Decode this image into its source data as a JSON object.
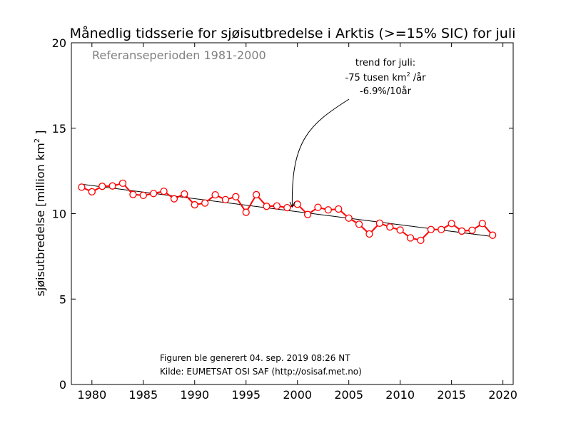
{
  "chart_data": {
    "type": "line",
    "title": "Månedlig tidsserie for sjøisutbredelse i Arktis (>=15% SIC) for juli",
    "reference_period": "Referanseperioden 1981-2000",
    "ylabel_main": "sjøisutbredelse [million km",
    "ylabel_sup": "2",
    "ylabel_end": " ]",
    "xlim": [
      1978,
      2021
    ],
    "ylim": [
      0,
      20
    ],
    "xticks": [
      1980,
      1985,
      1990,
      1995,
      2000,
      2005,
      2010,
      2015,
      2020
    ],
    "yticks": [
      0,
      5,
      10,
      15,
      20
    ],
    "series": [
      {
        "color": "#ff0000",
        "x": [
          1979,
          1980,
          1981,
          1982,
          1983,
          1984,
          1985,
          1986,
          1987,
          1988,
          1989,
          1990,
          1991,
          1992,
          1993,
          1994,
          1995,
          1996,
          1997,
          1998,
          1999,
          2000,
          2001,
          2002,
          2003,
          2004,
          2005,
          2006,
          2007,
          2008,
          2009,
          2010,
          2011,
          2012,
          2013,
          2014,
          2015,
          2016,
          2017,
          2018,
          2019
        ],
        "values": [
          11.55,
          11.28,
          11.6,
          11.62,
          11.78,
          11.12,
          11.07,
          11.18,
          11.31,
          10.87,
          11.15,
          10.52,
          10.62,
          11.1,
          10.82,
          10.99,
          10.08,
          11.11,
          10.43,
          10.45,
          10.35,
          10.55,
          9.95,
          10.37,
          10.22,
          10.27,
          9.74,
          9.38,
          8.81,
          9.44,
          9.22,
          9.04,
          8.58,
          8.44,
          9.07,
          9.07,
          9.42,
          8.98,
          9.03,
          9.42,
          8.74
        ]
      }
    ],
    "trend": {
      "color": "#000000",
      "x": [
        1979,
        2019
      ],
      "values": [
        11.72,
        8.66
      ]
    },
    "annotation": {
      "line1": "trend for juli:",
      "line2_pre": "-75 tusen km",
      "line2_sup": "2",
      "line2_post": " /år",
      "line3": "-6.9%/10år",
      "arrow_target_x": 1999.5,
      "arrow_target_y": 10.35
    },
    "footer_line1": "Figuren ble generert 04. sep. 2019 08:26 NT",
    "footer_line2": "Kilde: EUMETSAT OSI SAF (http://osisaf.met.no)"
  }
}
